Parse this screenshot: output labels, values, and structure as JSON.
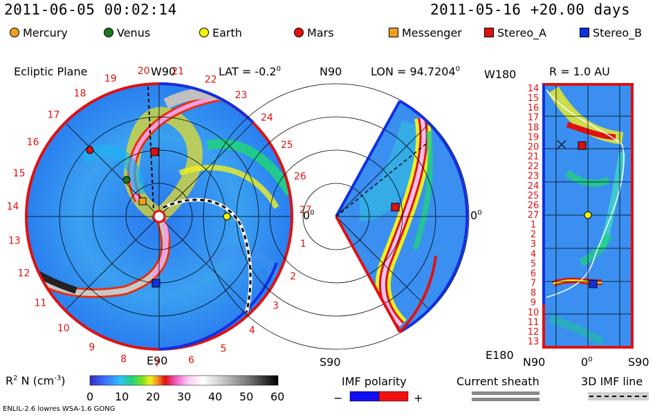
{
  "header": {
    "datetime": "2011-06-05 00:02:14",
    "run_info": "2011-05-16 +20.00 days"
  },
  "legend": {
    "bodies": [
      {
        "name": "Mercury",
        "color": "#f0a020",
        "shape": "circle"
      },
      {
        "name": "Venus",
        "color": "#1a7a1a",
        "shape": "circle"
      },
      {
        "name": "Earth",
        "color": "#f5f500",
        "shape": "circle"
      },
      {
        "name": "Mars",
        "color": "#e01010",
        "shape": "circle"
      },
      {
        "name": "Messenger",
        "color": "#f0a020",
        "shape": "square"
      },
      {
        "name": "Stereo_A",
        "color": "#e01010",
        "shape": "square"
      },
      {
        "name": "Stereo_B",
        "color": "#1030e0",
        "shape": "square"
      }
    ]
  },
  "panels": {
    "ecliptic": {
      "title": "Ecliptic Plane",
      "top_label": "W90",
      "lat_label": "LAT = -0.2",
      "lat_sup": "0",
      "bottom_label": "E90",
      "right_label": "0",
      "right_sup": "0",
      "carrington_numbers": [
        "20",
        "21",
        "22",
        "23",
        "24",
        "25",
        "26",
        "27",
        "1",
        "2",
        "3",
        "4",
        "5",
        "6",
        "7",
        "8",
        "9",
        "10",
        "11",
        "12",
        "13",
        "14",
        "15",
        "16",
        "17",
        "18",
        "19"
      ]
    },
    "meridional": {
      "top_label": "N90",
      "lon_label": "LON = 94.7204",
      "lon_sup": "0",
      "right_label": "0",
      "right_sup": "0",
      "bottom_label": "S90"
    },
    "radius": {
      "top_left_label": "W180",
      "title": "R = 1.0 AU",
      "bottom_left_label": "E180",
      "x_labels": [
        "N90",
        "0",
        "S90"
      ],
      "x_zero_sup": "0",
      "y_labels": [
        "14",
        "15",
        "16",
        "17",
        "18",
        "19",
        "20",
        "21",
        "22",
        "23",
        "24",
        "25",
        "26",
        "27",
        "1",
        "2",
        "3",
        "4",
        "5",
        "6",
        "7",
        "8",
        "9",
        "10",
        "11",
        "12",
        "13"
      ]
    }
  },
  "colorbar": {
    "label": "R",
    "label_sup": "2",
    "label_rest": " N (cm",
    "label_unit_sup": "-3",
    "label_end": ")",
    "ticks": [
      "0",
      "10",
      "20",
      "30",
      "40",
      "50",
      "60"
    ],
    "range": [
      0,
      60
    ]
  },
  "imf": {
    "title": "IMF polarity",
    "minus": "−",
    "plus": "+",
    "colors": {
      "negative": "#1010f0",
      "positive": "#f01010"
    }
  },
  "current_sheath": {
    "title": "Current sheath"
  },
  "imf_line": {
    "title": "3D IMF line"
  },
  "footer": {
    "model": "ENLIL-2.6 lowres WSA-1.6 GONG"
  }
}
